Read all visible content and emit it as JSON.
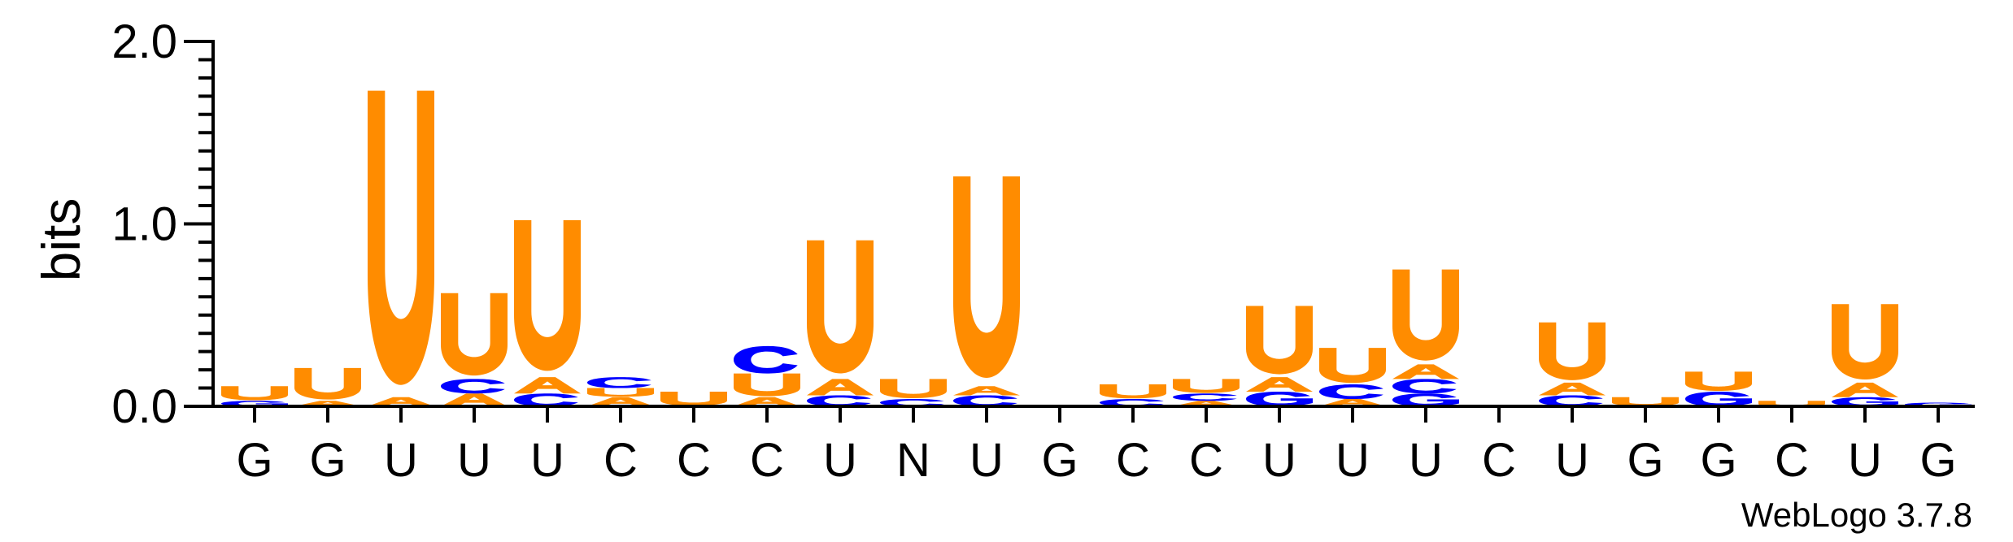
{
  "chart_data": {
    "type": "sequence-logo",
    "ylabel": "bits",
    "ylim": [
      0,
      2.0
    ],
    "yticks": [
      "0.0",
      "1.0",
      "2.0"
    ],
    "credit": "WebLogo 3.7.8",
    "colors": {
      "U": "#ff8c00",
      "A": "#ff8c00",
      "C": "#0000ff",
      "G": "#0000ff"
    },
    "positions": [
      {
        "label": "G",
        "stack": [
          [
            "G",
            0.03
          ],
          [
            "U",
            0.08
          ]
        ]
      },
      {
        "label": "G",
        "stack": [
          [
            "A",
            0.03
          ],
          [
            "U",
            0.18
          ]
        ]
      },
      {
        "label": "U",
        "stack": [
          [
            "A",
            0.05
          ],
          [
            "U",
            1.68
          ]
        ]
      },
      {
        "label": "U",
        "stack": [
          [
            "A",
            0.07
          ],
          [
            "C",
            0.08
          ],
          [
            "U",
            0.47
          ]
        ]
      },
      {
        "label": "U",
        "stack": [
          [
            "C",
            0.07
          ],
          [
            "A",
            0.09
          ],
          [
            "U",
            0.86
          ]
        ]
      },
      {
        "label": "C",
        "stack": [
          [
            "A",
            0.05
          ],
          [
            "U",
            0.05
          ],
          [
            "C",
            0.06
          ]
        ]
      },
      {
        "label": "C",
        "stack": [
          [
            "U",
            0.08
          ]
        ]
      },
      {
        "label": "C",
        "stack": [
          [
            "A",
            0.05
          ],
          [
            "U",
            0.13
          ],
          [
            "C",
            0.15
          ]
        ]
      },
      {
        "label": "U",
        "stack": [
          [
            "C",
            0.06
          ],
          [
            "A",
            0.09
          ],
          [
            "U",
            0.76
          ]
        ]
      },
      {
        "label": "N",
        "stack": [
          [
            "C",
            0.04
          ],
          [
            "U",
            0.11
          ]
        ]
      },
      {
        "label": "U",
        "stack": [
          [
            "C",
            0.06
          ],
          [
            "A",
            0.05
          ],
          [
            "U",
            1.15
          ]
        ]
      },
      {
        "label": "G",
        "stack": []
      },
      {
        "label": "C",
        "stack": [
          [
            "C",
            0.04
          ],
          [
            "U",
            0.08
          ]
        ]
      },
      {
        "label": "C",
        "stack": [
          [
            "A",
            0.03
          ],
          [
            "C",
            0.04
          ],
          [
            "U",
            0.08
          ]
        ]
      },
      {
        "label": "U",
        "stack": [
          [
            "G",
            0.08
          ],
          [
            "A",
            0.08
          ],
          [
            "U",
            0.39
          ]
        ]
      },
      {
        "label": "U",
        "stack": [
          [
            "A",
            0.04
          ],
          [
            "C",
            0.08
          ],
          [
            "U",
            0.2
          ]
        ]
      },
      {
        "label": "U",
        "stack": [
          [
            "G",
            0.07
          ],
          [
            "C",
            0.08
          ],
          [
            "A",
            0.08
          ],
          [
            "U",
            0.52
          ]
        ]
      },
      {
        "label": "C",
        "stack": []
      },
      {
        "label": "U",
        "stack": [
          [
            "C",
            0.06
          ],
          [
            "A",
            0.07
          ],
          [
            "U",
            0.33
          ]
        ]
      },
      {
        "label": "G",
        "stack": [
          [
            "U",
            0.05
          ]
        ]
      },
      {
        "label": "G",
        "stack": [
          [
            "G",
            0.08
          ],
          [
            "U",
            0.11
          ]
        ]
      },
      {
        "label": "C",
        "stack": [
          [
            "U",
            0.03
          ]
        ]
      },
      {
        "label": "U",
        "stack": [
          [
            "G",
            0.05
          ],
          [
            "A",
            0.08
          ],
          [
            "U",
            0.43
          ]
        ]
      },
      {
        "label": "G",
        "stack": [
          [
            "G",
            0.02
          ]
        ]
      }
    ]
  }
}
